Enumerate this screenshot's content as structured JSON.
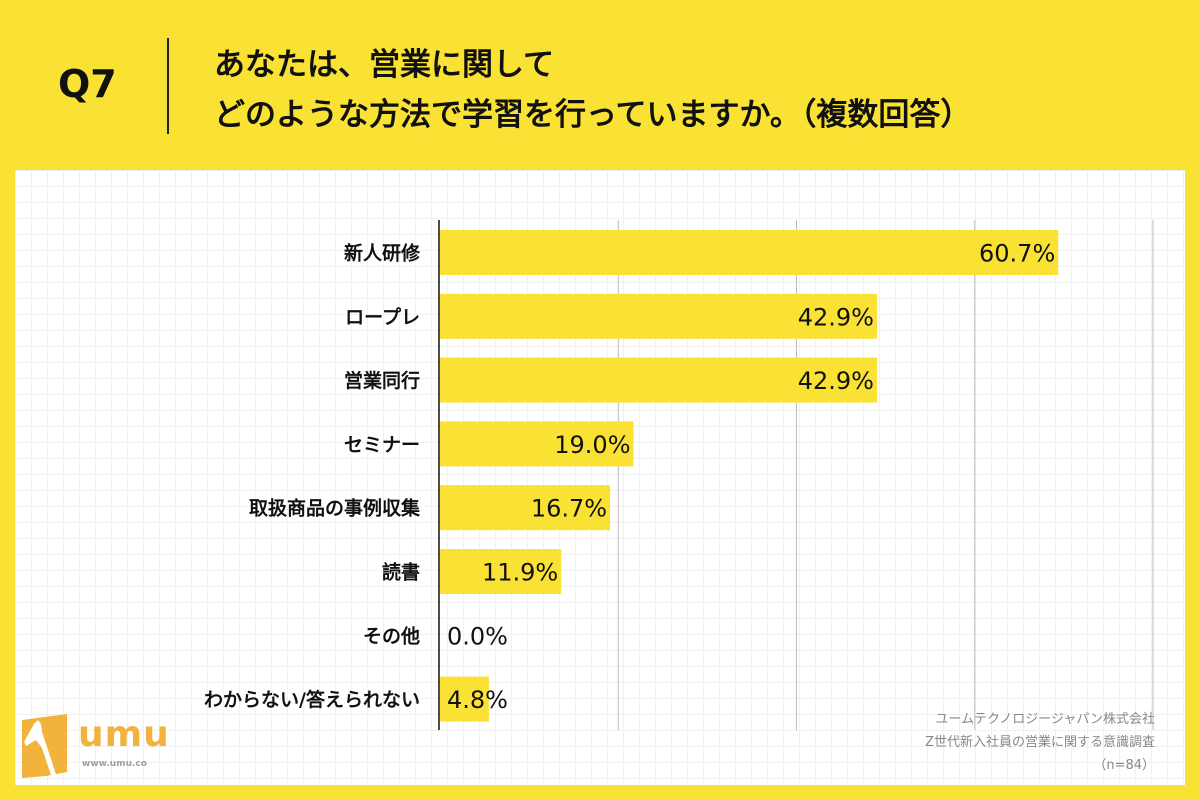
{
  "header": {
    "question": "Q7",
    "title_line1": "あなたは、営業に関して",
    "title_line2": "どのような方法で学習を行っていますか。（複数回答）"
  },
  "chart_data": {
    "type": "bar",
    "orientation": "horizontal",
    "categories": [
      "新人研修",
      "ロープレ",
      "営業同行",
      "セミナー",
      "取扱商品の事例収集",
      "読書",
      "その他",
      "わからない/答えられない"
    ],
    "values": [
      60.7,
      42.9,
      42.9,
      19.0,
      16.7,
      11.9,
      0.0,
      4.8
    ],
    "value_labels": [
      "60.7%",
      "42.9%",
      "42.9%",
      "19.0%",
      "16.7%",
      "11.9%",
      "0.0%",
      "4.8%"
    ],
    "xlim": [
      0,
      70
    ],
    "grid": "vertical",
    "bar_color": "#F9E234"
  },
  "footer": {
    "line1": "ユームテクノロジージャパン株式会社",
    "line2": "Z世代新入社員の営業に関する意識調査",
    "line3": "（n=84）"
  },
  "logo": {
    "text": "umu",
    "url": "www.umu.co",
    "color": "#F2B33D"
  }
}
